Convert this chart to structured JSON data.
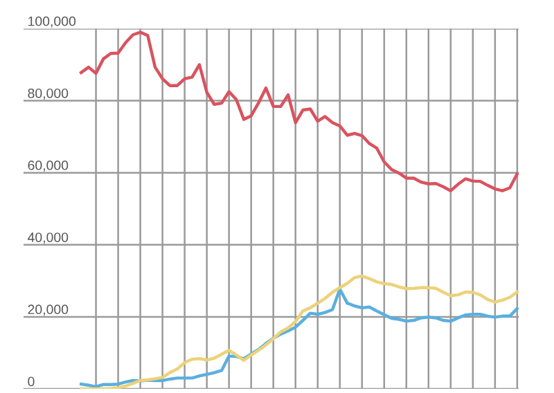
{
  "chart_data": {
    "type": "line",
    "categories": [
      null,
      null,
      null,
      null,
      null,
      null,
      null,
      null,
      null,
      null,
      null,
      null,
      null,
      null,
      null,
      null,
      null,
      null,
      null,
      null,
      null,
      null,
      null,
      null,
      null,
      null,
      null,
      null,
      null,
      null,
      null,
      null,
      null,
      null,
      null,
      null,
      null,
      null,
      null,
      null,
      null,
      null,
      null,
      null,
      null,
      null,
      null,
      null,
      null,
      null,
      null,
      null,
      null,
      null,
      null,
      null,
      null,
      null,
      null,
      null
    ],
    "series": [
      {
        "color": "#d9535f",
        "values": [
          87800,
          89300,
          87600,
          91600,
          93100,
          93200,
          96100,
          98300,
          99000,
          98100,
          89300,
          86100,
          84200,
          84200,
          86100,
          86500,
          90000,
          82300,
          79000,
          79300,
          82500,
          80300,
          74800,
          75800,
          79400,
          83500,
          78400,
          78400,
          81600,
          73900,
          77400,
          77700,
          74300,
          75600,
          73900,
          73000,
          70400,
          70900,
          70300,
          68100,
          66800,
          63000,
          60900,
          59900,
          58500,
          58500,
          57400,
          56900,
          57000,
          56100,
          55000,
          56800,
          58300,
          57700,
          57600,
          56500,
          55500,
          55000,
          55800,
          59700
        ]
      },
      {
        "color": "#5aafdf",
        "values": [
          1300,
          1000,
          600,
          1200,
          1200,
          1300,
          1900,
          2300,
          2200,
          2400,
          2300,
          2300,
          2700,
          3000,
          3000,
          3000,
          3600,
          4000,
          4500,
          5100,
          9100,
          9000,
          8400,
          9700,
          10900,
          12600,
          14000,
          15200,
          16100,
          17100,
          19000,
          21000,
          20700,
          21200,
          22000,
          27700,
          23800,
          23000,
          22500,
          22700,
          21600,
          20600,
          19600,
          19300,
          18800,
          19000,
          19700,
          19900,
          19700,
          19000,
          18800,
          19700,
          20500,
          20700,
          20700,
          20200,
          19900,
          20200,
          20200,
          22300
        ]
      },
      {
        "color": "#ecd27a",
        "values": [
          0,
          0,
          0,
          0,
          100,
          300,
          800,
          1500,
          2300,
          2500,
          2800,
          3200,
          4500,
          5500,
          7300,
          8200,
          8400,
          8000,
          8500,
          9600,
          10700,
          9400,
          7900,
          9400,
          10700,
          12200,
          13900,
          15800,
          16900,
          18700,
          21600,
          22500,
          23800,
          25100,
          26800,
          28100,
          29300,
          30900,
          31300,
          30600,
          29700,
          29200,
          29000,
          28300,
          27800,
          27900,
          28100,
          28100,
          27900,
          26800,
          25900,
          26100,
          26900,
          26800,
          26100,
          24800,
          24100,
          24600,
          25400,
          26900
        ]
      }
    ],
    "ylim": [
      0,
      100000
    ],
    "yticks": [
      {
        "value": 0,
        "label": "0"
      },
      {
        "value": 20000,
        "label": "20,000"
      },
      {
        "value": 40000,
        "label": "40,000"
      },
      {
        "value": 60000,
        "label": "60,000"
      },
      {
        "value": 80000,
        "label": "80,000"
      },
      {
        "value": 100000,
        "label": "100,000"
      }
    ],
    "tick_labels": "y",
    "grid": true,
    "marker": "none",
    "line_style": "solid"
  }
}
